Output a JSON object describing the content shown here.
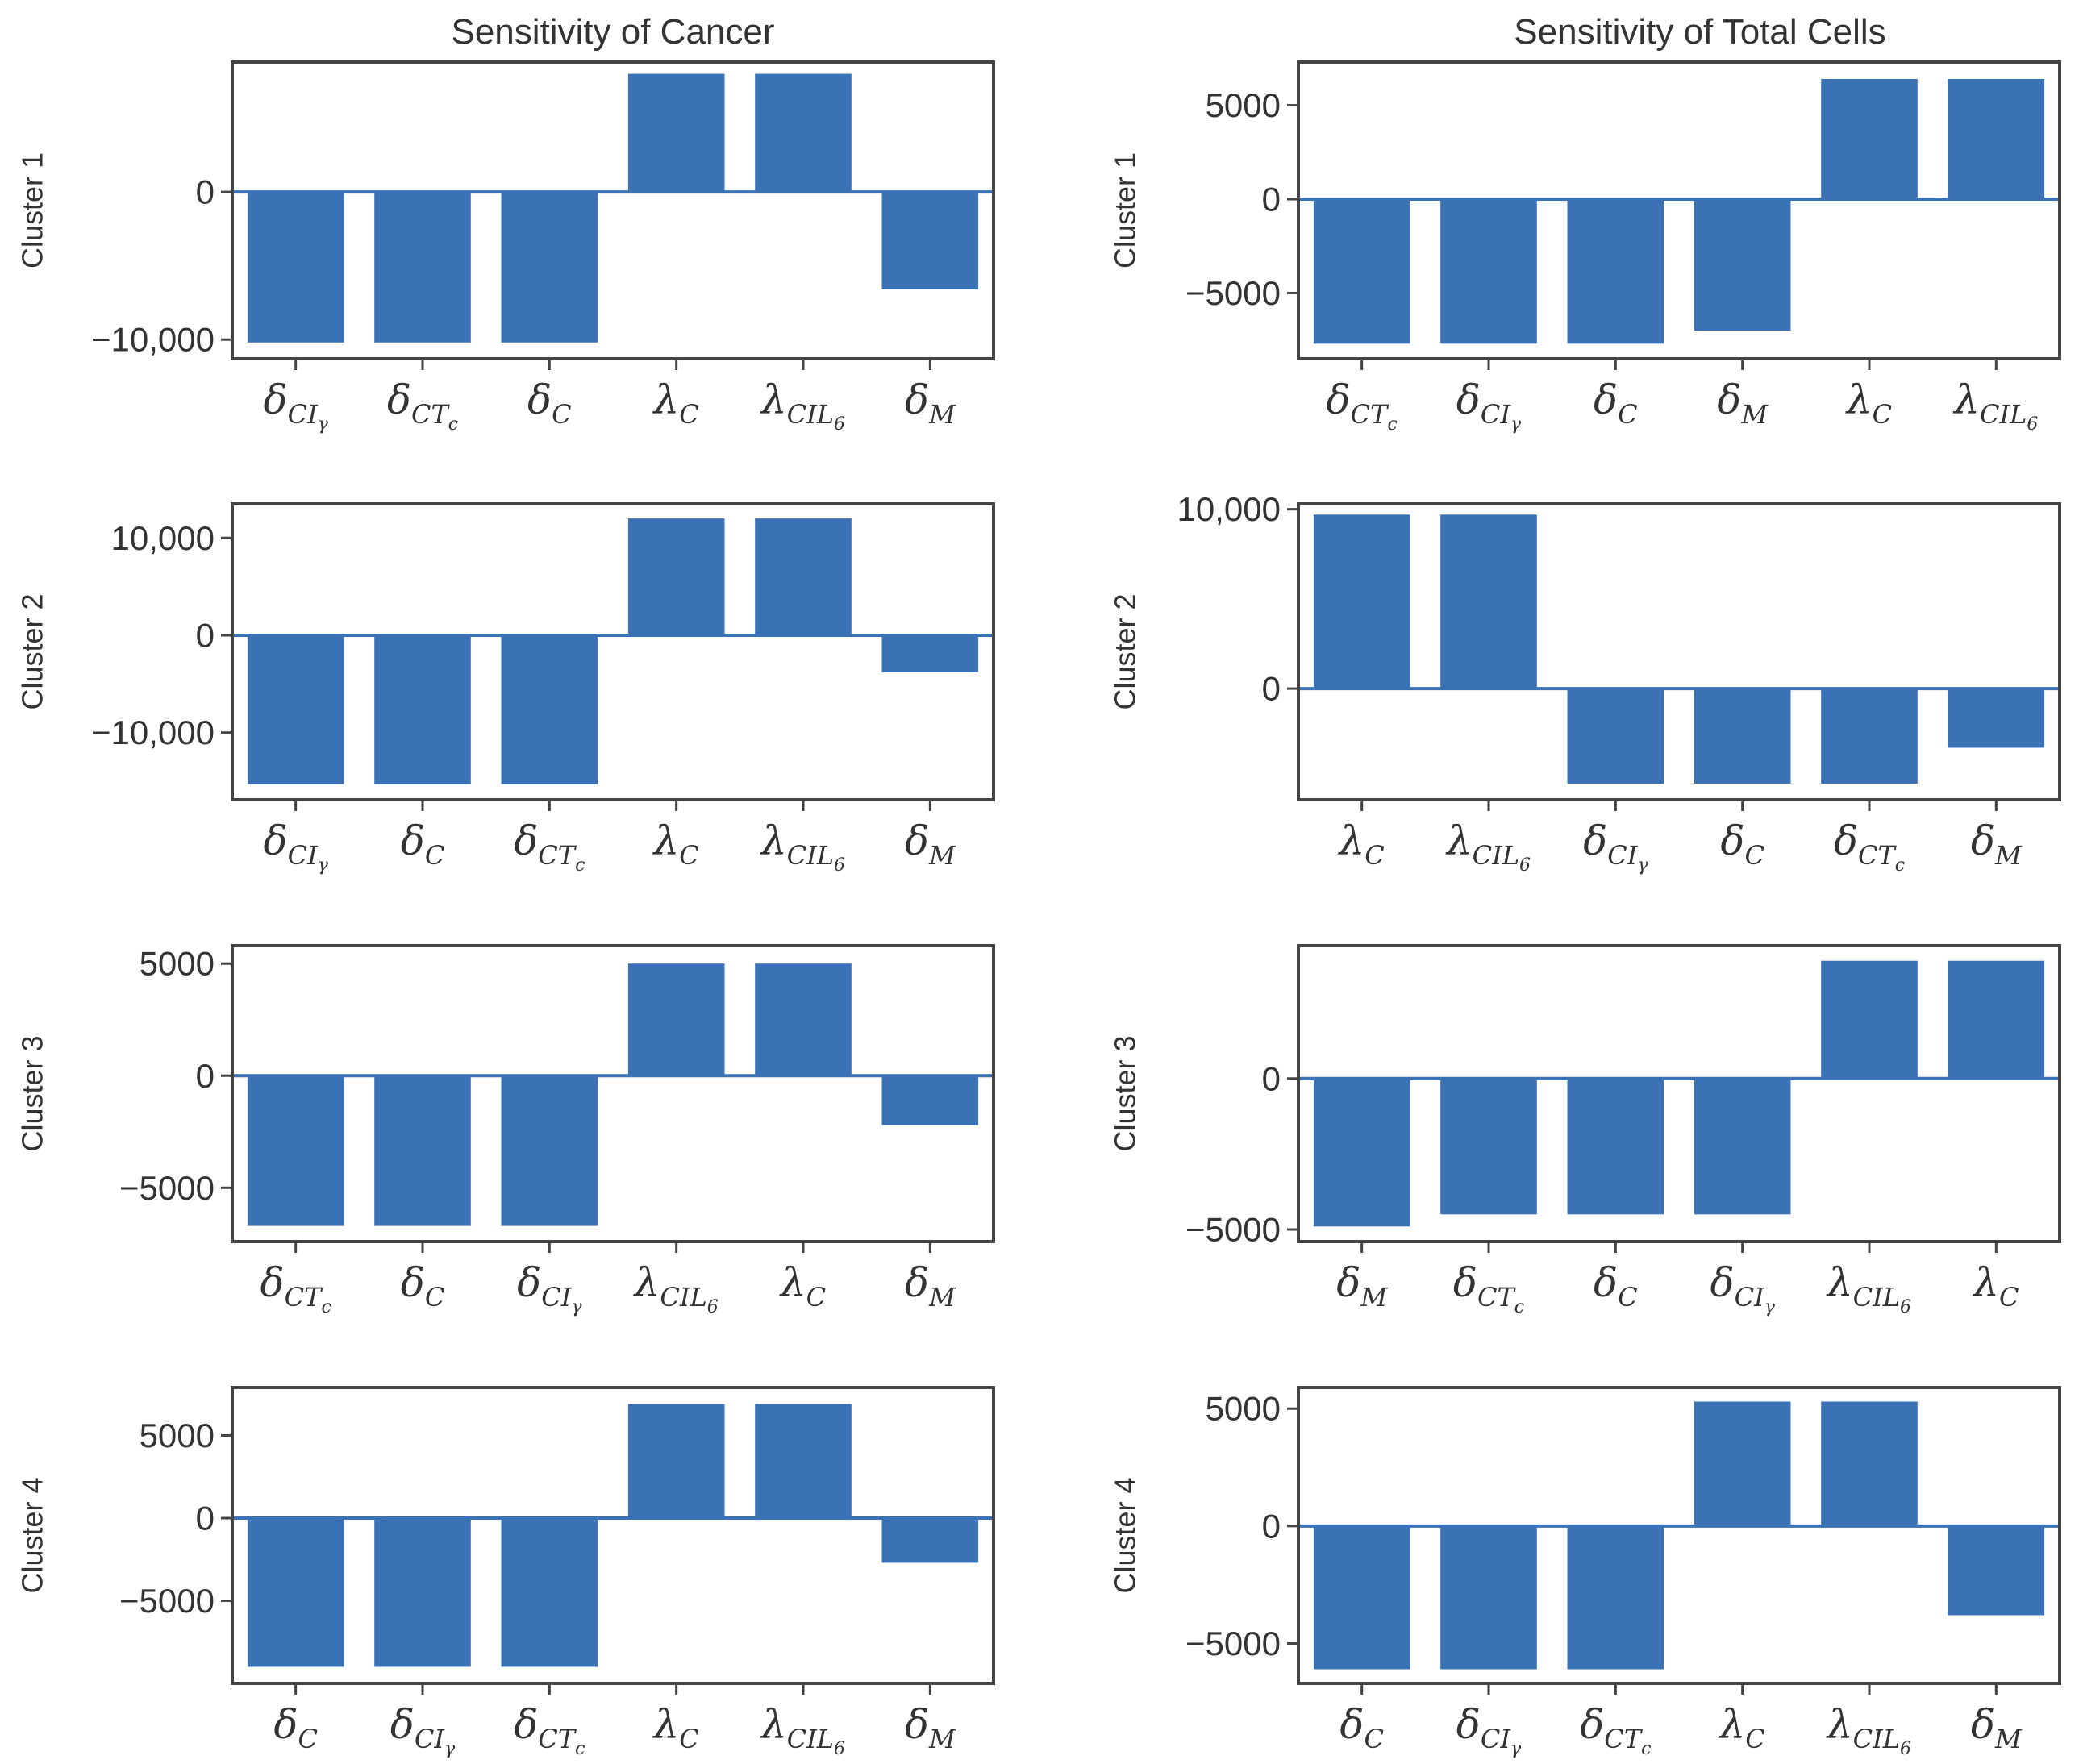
{
  "colors": {
    "bar": "#3b72b6",
    "axis": "#444444",
    "text": "#333333"
  },
  "figure": {
    "column_titles": [
      "Sensitivity of Cancer",
      "Sensitivity of Total Cells"
    ]
  },
  "chart_data": [
    {
      "type": "bar",
      "title": "Sensitivity of Cancer",
      "ylabel": "Cluster 1",
      "categories": [
        "δ_{CI_γ}",
        "δ_{CT_c}",
        "δ_C",
        "λ_C",
        "λ_{CIL_6}",
        "δ_M"
      ],
      "values": [
        -10200,
        -10200,
        -10200,
        8000,
        8000,
        -6600
      ],
      "ylim": [
        -11300,
        8800
      ],
      "yticks": [
        0,
        -10000
      ],
      "ytick_labels": [
        "0",
        "−10,000"
      ]
    },
    {
      "type": "bar",
      "title": "Sensitivity of Total Cells",
      "ylabel": "Cluster 1",
      "categories": [
        "δ_{CT_c}",
        "δ_{CI_γ}",
        "δ_C",
        "δ_M",
        "λ_C",
        "λ_{CIL_6}"
      ],
      "values": [
        -7700,
        -7700,
        -7700,
        -7000,
        6400,
        6400
      ],
      "ylim": [
        -8500,
        7300
      ],
      "yticks": [
        5000,
        0,
        -5000
      ],
      "ytick_labels": [
        "5000",
        "0",
        "−5000"
      ]
    },
    {
      "type": "bar",
      "ylabel": "Cluster 2",
      "categories": [
        "δ_{CI_γ}",
        "δ_C",
        "δ_{CT_c}",
        "λ_C",
        "λ_{CIL_6}",
        "δ_M"
      ],
      "values": [
        -15300,
        -15300,
        -15300,
        12000,
        12000,
        -3800
      ],
      "ylim": [
        -16900,
        13500
      ],
      "yticks": [
        10000,
        0,
        -10000
      ],
      "ytick_labels": [
        "10,000",
        "0",
        "−10,000"
      ]
    },
    {
      "type": "bar",
      "ylabel": "Cluster 2",
      "categories": [
        "λ_C",
        "λ_{CIL_6}",
        "δ_{CI_γ}",
        "δ_C",
        "δ_{CT_c}",
        "δ_M"
      ],
      "values": [
        9700,
        9700,
        -5300,
        -5300,
        -5300,
        -3300
      ],
      "ylim": [
        -6200,
        10300
      ],
      "yticks": [
        10000,
        0
      ],
      "ytick_labels": [
        "10,000",
        "0"
      ]
    },
    {
      "type": "bar",
      "ylabel": "Cluster 3",
      "categories": [
        "δ_{CT_c}",
        "δ_C",
        "δ_{CI_γ}",
        "λ_{CIL_6}",
        "λ_C",
        "δ_M"
      ],
      "values": [
        -6700,
        -6700,
        -6700,
        5000,
        5000,
        -2200
      ],
      "ylim": [
        -7400,
        5800
      ],
      "yticks": [
        5000,
        0,
        -5000
      ],
      "ytick_labels": [
        "5000",
        "0",
        "−5000"
      ]
    },
    {
      "type": "bar",
      "ylabel": "Cluster 3",
      "categories": [
        "δ_M",
        "δ_{CT_c}",
        "δ_C",
        "δ_{CI_γ}",
        "λ_{CIL_6}",
        "λ_C"
      ],
      "values": [
        -4900,
        -4500,
        -4500,
        -4500,
        3900,
        3900
      ],
      "ylim": [
        -5400,
        4400
      ],
      "yticks": [
        0,
        -5000
      ],
      "ytick_labels": [
        "0",
        "−5000"
      ]
    },
    {
      "type": "bar",
      "ylabel": "Cluster 4",
      "categories": [
        "δ_C",
        "δ_{CI_γ}",
        "δ_{CT_c}",
        "λ_C",
        "λ_{CIL_6}",
        "δ_M"
      ],
      "values": [
        -9000,
        -9000,
        -9000,
        6900,
        6900,
        -2700
      ],
      "ylim": [
        -10000,
        7900
      ],
      "yticks": [
        5000,
        0,
        -5000
      ],
      "ytick_labels": [
        "5000",
        "0",
        "−5000"
      ]
    },
    {
      "type": "bar",
      "ylabel": "Cluster 4",
      "categories": [
        "δ_C",
        "δ_{CI_γ}",
        "δ_{CT_c}",
        "λ_C",
        "λ_{CIL_6}",
        "δ_M"
      ],
      "values": [
        -6100,
        -6100,
        -6100,
        5300,
        5300,
        -3800
      ],
      "ylim": [
        -6700,
        5900
      ],
      "yticks": [
        5000,
        0,
        -5000
      ],
      "ytick_labels": [
        "5000",
        "0",
        "−5000"
      ]
    }
  ]
}
